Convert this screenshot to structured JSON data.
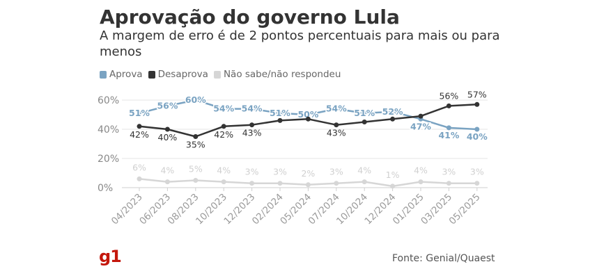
{
  "header": {
    "title": "Aprovação do governo Lula",
    "subtitle": "A margem de erro é de 2 pontos percentuais para mais ou para menos"
  },
  "legend": [
    {
      "label": "Aprova",
      "color": "#7aa3c2"
    },
    {
      "label": "Desaprova",
      "color": "#333333"
    },
    {
      "label": "Não sabe/não respondeu",
      "color": "#d6d6d6"
    }
  ],
  "footer": {
    "logo": "g1",
    "source": "Fonte: Genial/Quaest"
  },
  "chart_data": {
    "type": "line",
    "categories": [
      "04/2023",
      "06/2023",
      "08/2023",
      "10/2023",
      "12/2023",
      "02/2024",
      "05/2024",
      "07/2024",
      "10/2024",
      "12/2024",
      "01/2025",
      "03/2025",
      "05/2025"
    ],
    "yticks": [
      "0%",
      "20%",
      "40%",
      "60%"
    ],
    "ylim": [
      0,
      60
    ],
    "grid": true,
    "legend_position": "top-left",
    "series": [
      {
        "name": "Aprova",
        "color": "#7aa3c2",
        "label_color": "#7aa3c2",
        "values": [
          51,
          56,
          60,
          54,
          54,
          51,
          50,
          54,
          51,
          52,
          47,
          41,
          40
        ],
        "labels": [
          "51%",
          "56%",
          "60%",
          "54%",
          "54%",
          "51%",
          "50%",
          "54%",
          "51%",
          "52%",
          "47%",
          "41%",
          "40%"
        ]
      },
      {
        "name": "Desaprova",
        "color": "#333333",
        "label_color": "#333333",
        "values": [
          42,
          40,
          35,
          42,
          43,
          46,
          47,
          43,
          45,
          47,
          49,
          56,
          57
        ],
        "labels": [
          "42%",
          "40%",
          "35%",
          "42%",
          "43%",
          "",
          "",
          "43%",
          "",
          "",
          "",
          "56%",
          "57%"
        ]
      },
      {
        "name": "Não sabe/não respondeu",
        "color": "#d6d6d6",
        "label_color": "#d0d0d0",
        "values": [
          6,
          4,
          5,
          4,
          3,
          3,
          2,
          3,
          4,
          1,
          4,
          3,
          3
        ],
        "labels": [
          "6%",
          "4%",
          "5%",
          "4%",
          "3%",
          "3%",
          "2%",
          "3%",
          "4%",
          "1%",
          "4%",
          "3%",
          "3%"
        ]
      }
    ]
  }
}
